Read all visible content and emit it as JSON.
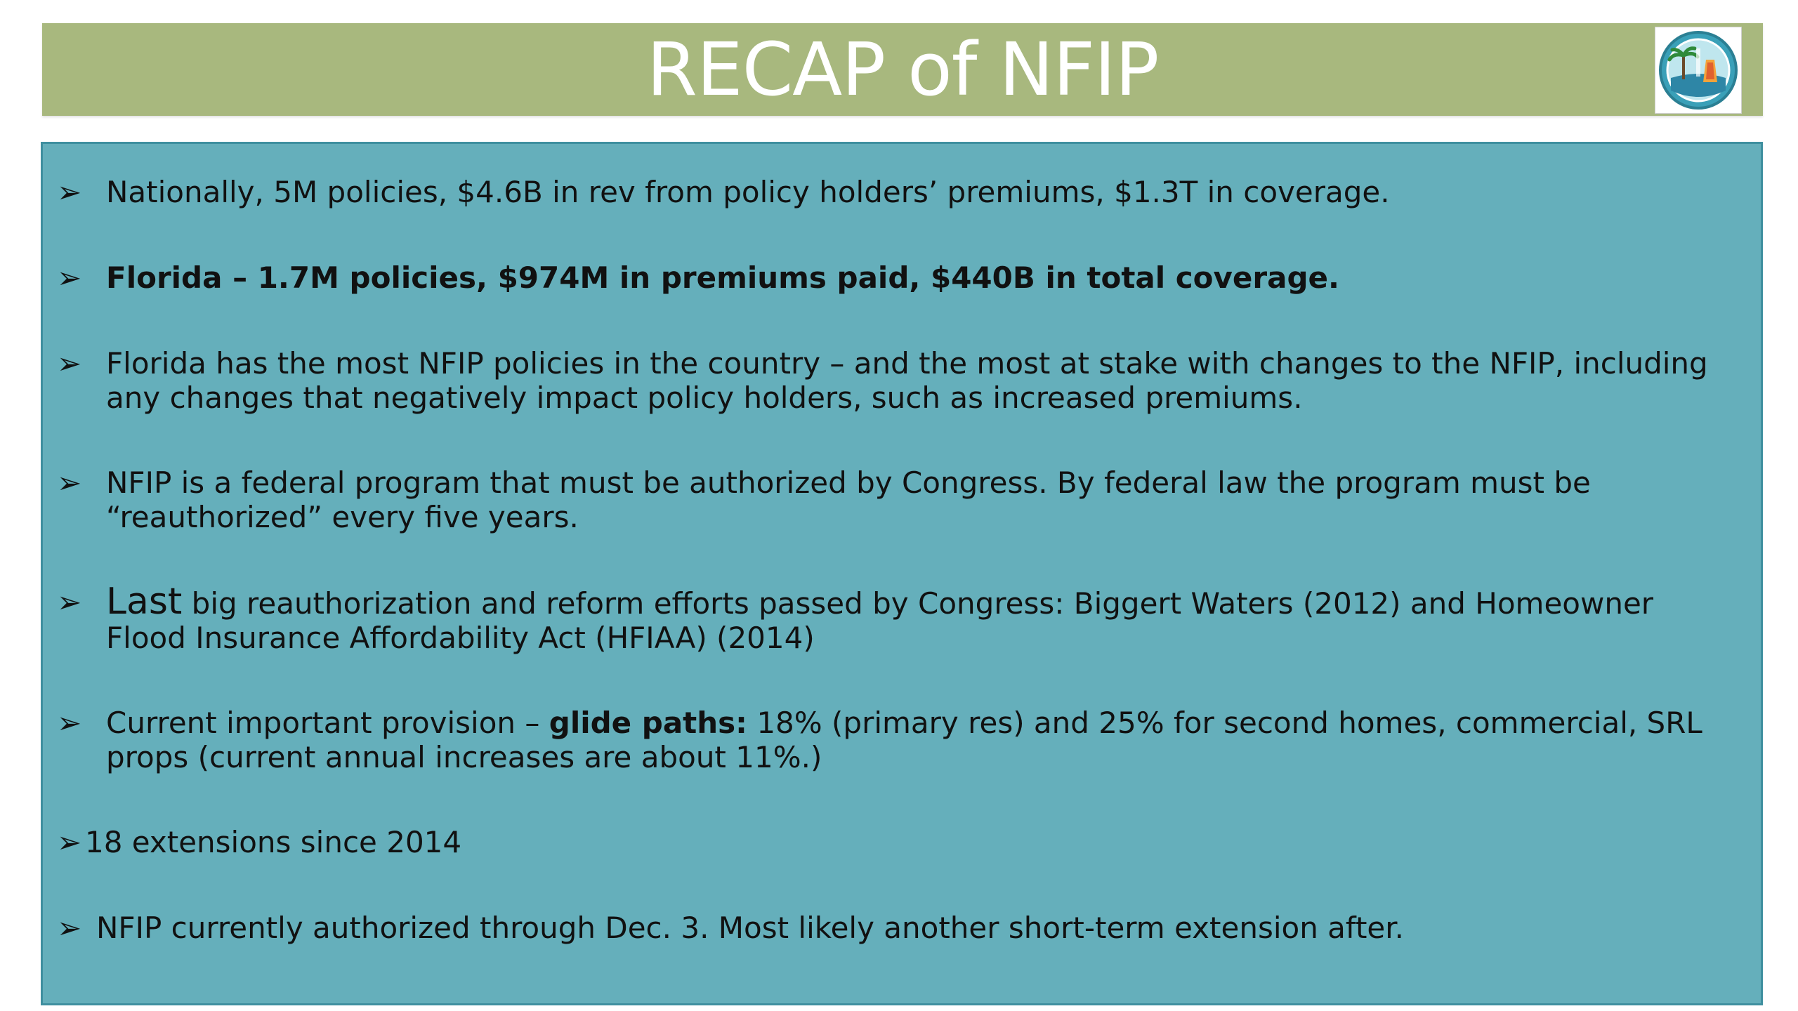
{
  "title": "RECAP of NFIP",
  "bullets": [
    {
      "text": "Nationally, 5M policies, $4.6B in rev from policy holders’ premiums, $1.3T in coverage."
    },
    {
      "text": "Florida – 1.7M policies, $974M in premiums paid, $440B in total coverage."
    },
    {
      "text": "Florida has the most NFIP policies in the country – and the most at stake with changes to the NFIP,  including any changes that negatively impact policy holders, such as increased premiums."
    },
    {
      "text": "NFIP is a federal program that must be authorized by Congress. By federal law the program must be “reauthorized” every five years."
    },
    {
      "lead": "Last",
      "text": " big reauthorization and reform efforts passed by Congress: Biggert Waters (2012) and Homeowner Flood Insurance Affordability Act (HFIAA) (2014)"
    },
    {
      "pre": "Current important provision – ",
      "bold": "glide paths:",
      "post": " 18% (primary res) and 25% for second homes, commercial, SRL props  (current annual increases are about 11%.)"
    },
    {
      "text": "18 extensions since 2014"
    },
    {
      "text": "NFIP currently authorized through Dec. 3.  Most likely another short-term extension after."
    }
  ],
  "arrow_glyph": "➢",
  "colors": {
    "title_bar": "#a8b87e",
    "content_bg": "#65afbb",
    "title_text": "#ffffff",
    "body_text": "#111111"
  },
  "icons": {
    "seal": "city-seal-icon"
  }
}
